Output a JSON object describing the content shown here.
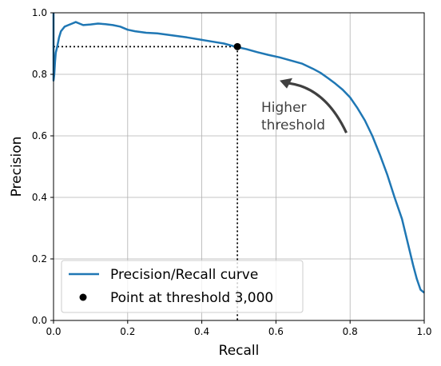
{
  "chart_data": {
    "type": "line",
    "xlabel": "Recall",
    "ylabel": "Precision",
    "xlim": [
      0,
      1
    ],
    "ylim": [
      0,
      1
    ],
    "grid": true,
    "x_ticks": [
      "0.0",
      "0.2",
      "0.4",
      "0.6",
      "0.8",
      "1.0"
    ],
    "y_ticks": [
      "0.0",
      "0.2",
      "0.4",
      "0.6",
      "0.8",
      "1.0"
    ],
    "legend_position": "lower-left",
    "colors": {
      "curve": "#1f77b4",
      "point": "#000000",
      "arrow": "#404040",
      "grid": "#b0b0b0"
    },
    "series": [
      {
        "name": "Precision/Recall curve",
        "x": [
          0.0,
          0.002,
          0.004,
          0.006,
          0.008,
          0.01,
          0.015,
          0.02,
          0.03,
          0.04,
          0.05,
          0.06,
          0.07,
          0.08,
          0.1,
          0.12,
          0.14,
          0.16,
          0.18,
          0.2,
          0.22,
          0.25,
          0.28,
          0.3,
          0.33,
          0.36,
          0.4,
          0.43,
          0.46,
          0.49,
          0.52,
          0.55,
          0.58,
          0.61,
          0.64,
          0.67,
          0.7,
          0.72,
          0.74,
          0.76,
          0.78,
          0.8,
          0.82,
          0.84,
          0.86,
          0.88,
          0.9,
          0.92,
          0.94,
          0.95,
          0.96,
          0.97,
          0.98,
          0.99,
          1.0
        ],
        "y": [
          0.78,
          0.8,
          0.84,
          0.87,
          0.88,
          0.89,
          0.92,
          0.94,
          0.955,
          0.96,
          0.965,
          0.97,
          0.965,
          0.96,
          0.962,
          0.965,
          0.963,
          0.96,
          0.955,
          0.945,
          0.94,
          0.935,
          0.933,
          0.93,
          0.925,
          0.92,
          0.912,
          0.906,
          0.9,
          0.89,
          0.882,
          0.872,
          0.863,
          0.855,
          0.845,
          0.835,
          0.818,
          0.805,
          0.788,
          0.77,
          0.75,
          0.725,
          0.69,
          0.65,
          0.6,
          0.54,
          0.475,
          0.4,
          0.33,
          0.28,
          0.23,
          0.18,
          0.135,
          0.1,
          0.09
        ]
      },
      {
        "name": "Point at threshold 3,000",
        "type": "point",
        "x": [
          0.496
        ],
        "y": [
          0.89
        ]
      }
    ],
    "annotations": [
      {
        "text_lines": [
          "Higher",
          "threshold"
        ],
        "arrow_from": [
          0.79,
          0.61
        ],
        "arrow_to": [
          0.61,
          0.78
        ]
      }
    ]
  }
}
